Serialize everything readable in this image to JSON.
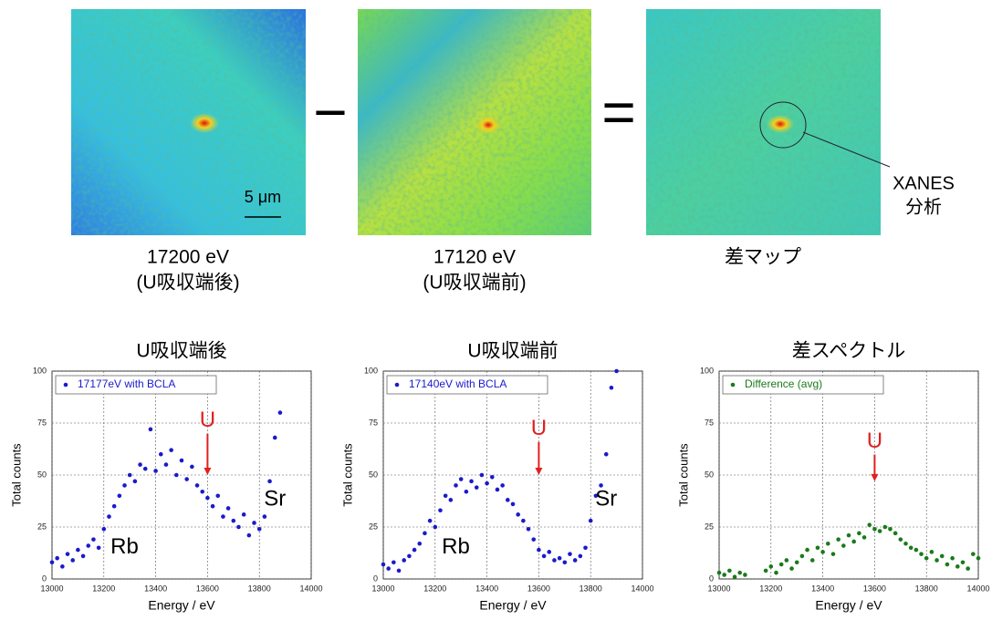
{
  "images": [
    {
      "label": "17200 eV",
      "sublabel": "(U吸収端後)"
    },
    {
      "label": "17120 eV",
      "sublabel": "(U吸収端前)"
    },
    {
      "label": "差マップ"
    }
  ],
  "operators": [
    "−",
    "="
  ],
  "scale_bar": "5 μm",
  "annotation": [
    "XANES",
    "分析"
  ],
  "chart_data": [
    {
      "type": "scatter",
      "title": "U吸収端後",
      "xlabel": "Energy / eV",
      "ylabel": "Total counts",
      "xlim": [
        13000,
        14000
      ],
      "ylim": [
        0,
        100
      ],
      "xticks": [
        13000,
        13200,
        13400,
        13600,
        13800,
        14000
      ],
      "yticks": [
        0,
        25,
        50,
        75,
        100
      ],
      "grid": true,
      "legend": "upper left",
      "x": [
        13000,
        13020,
        13040,
        13060,
        13080,
        13100,
        13120,
        13140,
        13160,
        13180,
        13200,
        13220,
        13240,
        13260,
        13280,
        13300,
        13320,
        13340,
        13360,
        13380,
        13400,
        13420,
        13440,
        13460,
        13480,
        13500,
        13520,
        13540,
        13560,
        13580,
        13600,
        13620,
        13640,
        13660,
        13680,
        13700,
        13720,
        13740,
        13760,
        13780,
        13800,
        13820,
        13840,
        13860,
        13880
      ],
      "series": [
        {
          "name": "17177eV with BCLA",
          "color": "#1a1acc",
          "values": [
            8,
            10,
            6,
            12,
            9,
            14,
            11,
            16,
            19,
            15,
            24,
            30,
            35,
            40,
            45,
            50,
            47,
            55,
            53,
            72,
            52,
            60,
            55,
            62,
            50,
            57,
            48,
            54,
            45,
            42,
            39,
            35,
            40,
            30,
            34,
            28,
            25,
            31,
            21,
            27,
            24,
            30,
            47,
            68,
            80
          ]
        }
      ],
      "annotations": [
        {
          "text": "U",
          "x": 13600,
          "y": 76,
          "color": "#e02020",
          "arrow_to": 50
        },
        {
          "text": "Rb",
          "x": 13280,
          "y": 15,
          "color": "#000000"
        },
        {
          "text": "Sr",
          "x": 13860,
          "y": 38,
          "color": "#000000"
        }
      ]
    },
    {
      "type": "scatter",
      "title": "U吸収端前",
      "xlabel": "Energy / eV",
      "ylabel": "Total counts",
      "xlim": [
        13000,
        14000
      ],
      "ylim": [
        0,
        100
      ],
      "xticks": [
        13000,
        13200,
        13400,
        13600,
        13800,
        14000
      ],
      "yticks": [
        0,
        25,
        50,
        75,
        100
      ],
      "grid": true,
      "legend": "upper left",
      "x": [
        13000,
        13020,
        13040,
        13060,
        13080,
        13100,
        13120,
        13140,
        13160,
        13180,
        13200,
        13220,
        13240,
        13260,
        13280,
        13300,
        13320,
        13340,
        13360,
        13380,
        13400,
        13420,
        13440,
        13460,
        13480,
        13500,
        13520,
        13540,
        13560,
        13580,
        13600,
        13620,
        13640,
        13660,
        13680,
        13700,
        13720,
        13740,
        13760,
        13780,
        13800,
        13820,
        13840,
        13860,
        13880,
        13900
      ],
      "series": [
        {
          "name": "17140eV with BCLA",
          "color": "#1a1acc",
          "values": [
            7,
            5,
            8,
            4,
            9,
            11,
            14,
            17,
            22,
            28,
            25,
            33,
            40,
            38,
            45,
            48,
            42,
            47,
            44,
            50,
            46,
            49,
            43,
            45,
            38,
            36,
            31,
            28,
            24,
            19,
            14,
            11,
            13,
            9,
            10,
            8,
            12,
            9,
            11,
            15,
            28,
            40,
            45,
            60,
            92,
            100
          ]
        }
      ],
      "annotations": [
        {
          "text": "U",
          "x": 13600,
          "y": 72,
          "color": "#e02020",
          "arrow_to": 50
        },
        {
          "text": "Rb",
          "x": 13280,
          "y": 15,
          "color": "#000000"
        },
        {
          "text": "Sr",
          "x": 13860,
          "y": 38,
          "color": "#000000"
        }
      ]
    },
    {
      "type": "scatter",
      "title": "差スペクトル",
      "xlabel": "Energy / eV",
      "ylabel": "Total counts",
      "xlim": [
        13000,
        14000
      ],
      "ylim": [
        0,
        100
      ],
      "xticks": [
        13000,
        13200,
        13400,
        13600,
        13800,
        14000
      ],
      "yticks": [
        0,
        25,
        50,
        75,
        100
      ],
      "grid": true,
      "legend": "upper left",
      "x": [
        13000,
        13020,
        13040,
        13060,
        13080,
        13100,
        13180,
        13200,
        13220,
        13240,
        13260,
        13280,
        13300,
        13320,
        13340,
        13360,
        13380,
        13400,
        13420,
        13440,
        13460,
        13480,
        13500,
        13520,
        13540,
        13560,
        13580,
        13600,
        13620,
        13640,
        13660,
        13680,
        13700,
        13720,
        13740,
        13760,
        13780,
        13800,
        13820,
        13840,
        13860,
        13880,
        13900,
        13920,
        13940,
        13960,
        13980,
        14000
      ],
      "series": [
        {
          "name": "Difference (avg)",
          "color": "#1a7a1a",
          "values": [
            3,
            2,
            4,
            1,
            3,
            2,
            4,
            6,
            3,
            7,
            9,
            5,
            8,
            11,
            14,
            9,
            15,
            13,
            17,
            12,
            19,
            16,
            21,
            18,
            22,
            20,
            26,
            24,
            23,
            25,
            24,
            22,
            19,
            17,
            15,
            14,
            12,
            10,
            13,
            9,
            11,
            7,
            10,
            6,
            8,
            5,
            12,
            10
          ]
        }
      ],
      "annotations": [
        {
          "text": "U",
          "x": 13600,
          "y": 66,
          "color": "#e02020",
          "arrow_to": 47
        }
      ]
    }
  ]
}
